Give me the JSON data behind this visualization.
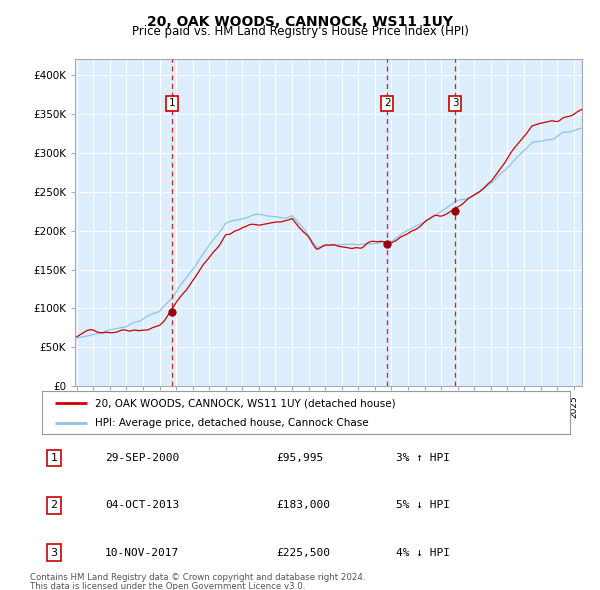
{
  "title": "20, OAK WOODS, CANNOCK, WS11 1UY",
  "subtitle": "Price paid vs. HM Land Registry's House Price Index (HPI)",
  "legend_property": "20, OAK WOODS, CANNOCK, WS11 1UY (detached house)",
  "legend_hpi": "HPI: Average price, detached house, Cannock Chase",
  "hpi_color": "#8ec4e8",
  "property_color": "#cc0000",
  "marker_color": "#990000",
  "vline_color": "#cc0000",
  "background_color": "#ddeeff",
  "grid_color": "#ffffff",
  "ylim": [
    0,
    420000
  ],
  "yticks": [
    0,
    50000,
    100000,
    150000,
    200000,
    250000,
    300000,
    350000,
    400000
  ],
  "ytick_labels": [
    "£0",
    "£50K",
    "£100K",
    "£150K",
    "£200K",
    "£250K",
    "£300K",
    "£350K",
    "£400K"
  ],
  "sale1_date": 2000.75,
  "sale1_price": 95995,
  "sale1_label": "1",
  "sale1_text": "29-SEP-2000",
  "sale1_price_text": "£95,995",
  "sale1_hpi_text": "3% ↑ HPI",
  "sale2_date": 2013.75,
  "sale2_price": 183000,
  "sale2_label": "2",
  "sale2_text": "04-OCT-2013",
  "sale2_price_text": "£183,000",
  "sale2_hpi_text": "5% ↓ HPI",
  "sale3_date": 2017.85,
  "sale3_price": 225500,
  "sale3_label": "3",
  "sale3_text": "10-NOV-2017",
  "sale3_price_text": "£225,500",
  "sale3_hpi_text": "4% ↓ HPI",
  "footer1": "Contains HM Land Registry data © Crown copyright and database right 2024.",
  "footer2": "This data is licensed under the Open Government Licence v3.0.",
  "xlim_start": 1994.9,
  "xlim_end": 2025.5
}
